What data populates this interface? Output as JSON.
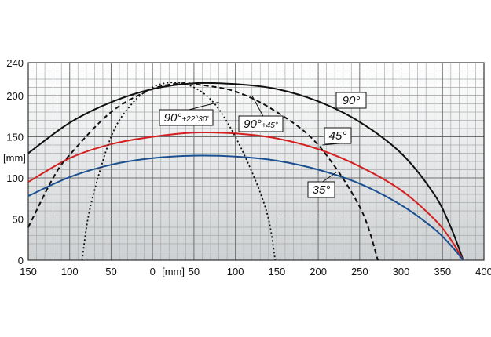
{
  "chart_data": {
    "type": "line",
    "x_axis": {
      "min": -150,
      "max": 400,
      "ticks": [
        -150,
        -100,
        -50,
        0,
        50,
        100,
        150,
        200,
        250,
        300,
        350,
        400
      ],
      "tick_labels": [
        "150",
        "100",
        "50",
        "0",
        "50",
        "100",
        "150",
        "200",
        "250",
        "300",
        "350",
        "400"
      ],
      "unit_label": "[mm]"
    },
    "y_axis": {
      "min": 0,
      "max": 240,
      "ticks": [
        0,
        50,
        100,
        150,
        200,
        240
      ],
      "tick_labels": [
        "0",
        "50",
        "100",
        "150",
        "200",
        "240"
      ],
      "unit_label": "[mm]"
    },
    "grid": true,
    "series": [
      {
        "name": "90°",
        "color": "#111111",
        "dash": "solid",
        "x": [
          -150,
          -100,
          -50,
          0,
          50,
          100,
          150,
          200,
          250,
          300,
          340,
          360,
          375
        ],
        "y": [
          130,
          167,
          192,
          208,
          215,
          214,
          208,
          193,
          168,
          130,
          80,
          40,
          0
        ]
      },
      {
        "name": "45°",
        "color": "#d42020",
        "dash": "solid",
        "x": [
          -150,
          -100,
          -50,
          0,
          50,
          100,
          150,
          200,
          250,
          300,
          340,
          360,
          375
        ],
        "y": [
          95,
          124,
          141,
          150,
          155,
          154,
          148,
          135,
          114,
          85,
          50,
          25,
          0
        ]
      },
      {
        "name": "35°",
        "color": "#1a4f90",
        "dash": "solid",
        "x": [
          -150,
          -100,
          -50,
          0,
          50,
          100,
          150,
          200,
          250,
          300,
          340,
          360,
          375
        ],
        "y": [
          78,
          101,
          116,
          124,
          127,
          126,
          121,
          110,
          93,
          67,
          38,
          18,
          0
        ]
      },
      {
        "name": "90°+45°",
        "name_main": "90°",
        "name_sub": "+45°",
        "color": "#111111",
        "dash": "dashed",
        "x": [
          -150,
          -120,
          -100,
          -50,
          0,
          35,
          50,
          100,
          150,
          200,
          250,
          272
        ],
        "y": [
          40,
          100,
          128,
          180,
          208,
          215,
          214,
          205,
          180,
          140,
          65,
          0
        ]
      },
      {
        "name": "90°+22°30'",
        "name_main": "90°",
        "name_sub": "+22°30'",
        "color": "#111111",
        "dash": "dotted",
        "x": [
          -85,
          -75,
          -50,
          -25,
          0,
          25,
          50,
          75,
          100,
          125,
          140,
          148
        ],
        "y": [
          0,
          65,
          150,
          190,
          210,
          216,
          210,
          190,
          150,
          95,
          50,
          0
        ]
      }
    ]
  }
}
